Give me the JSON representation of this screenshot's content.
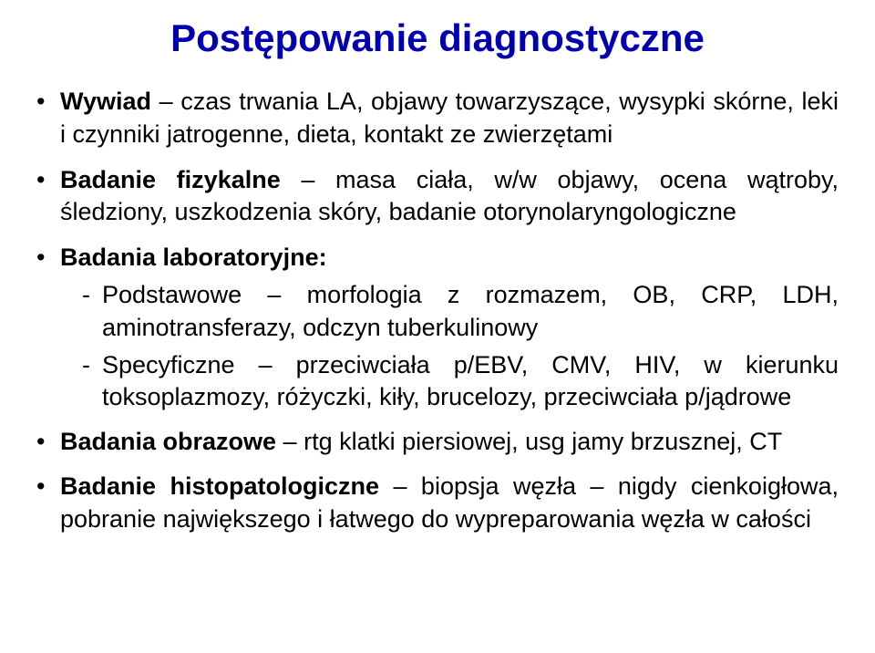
{
  "title": "Postępowanie diagnostyczne",
  "bullets": {
    "b1_lead": "Wywiad",
    "b1_rest": " – czas trwania LA, objawy towarzyszące, wysypki skórne, leki i czynniki jatrogenne, dieta, kontakt ze zwierzętami",
    "b2_lead": "Badanie fizykalne",
    "b2_rest": " – masa ciała, w/w objawy, ocena wątroby, śledziony, uszkodzenia skóry, badanie otorynolaryngologiczne",
    "b3_lead": "Badania laboratoryjne:",
    "b3_sub1": "Podstawowe – morfologia z rozmazem, OB, CRP, LDH, aminotransferazy, odczyn tuberkulinowy",
    "b3_sub2": "Specyficzne – przeciwciała p/EBV, CMV, HIV, w kierunku toksoplazmozy, różyczki, kiły, brucelozy, przeciwciała p/jądrowe",
    "b4_lead": "Badania obrazowe",
    "b4_rest": " – rtg klatki piersiowej,  usg jamy brzusznej, CT",
    "b5_lead": "Badanie histopatologiczne",
    "b5_rest": " – biopsja węzła – nigdy cienkoigłowa, pobranie największego i łatwego do wypreparowania węzła w całości"
  }
}
